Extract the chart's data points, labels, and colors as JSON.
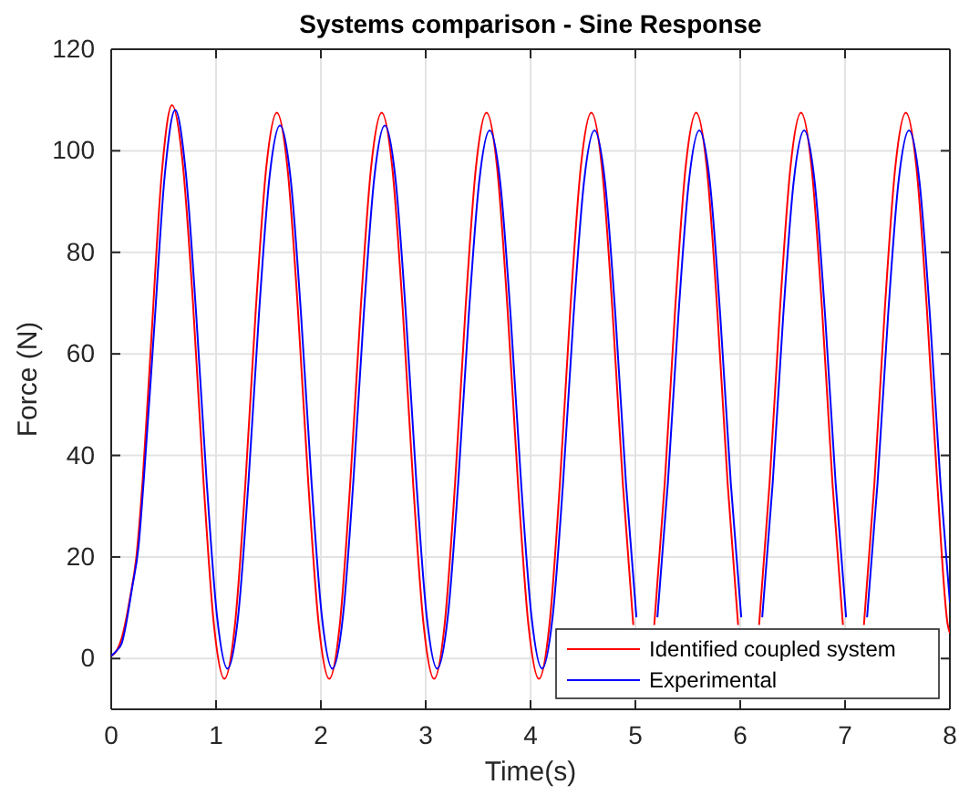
{
  "chart_data": {
    "type": "line",
    "title": "Systems comparison - Sine Response",
    "xlabel": "Time(s)",
    "ylabel": "Force (N)",
    "xlim": [
      0,
      8
    ],
    "xticks": [
      0,
      1,
      2,
      3,
      4,
      5,
      6,
      7,
      8
    ],
    "ylim": [
      -10,
      120
    ],
    "yticks": [
      0,
      20,
      40,
      60,
      80,
      100,
      120
    ],
    "grid": true,
    "legend": "bottom right",
    "line_style": "solid",
    "marker": "none",
    "series": [
      {
        "name": "Identified coupled system",
        "color": "#ff0000",
        "x": [
          0,
          0.05,
          0.1,
          0.18,
          0.24,
          0.3,
          0.38,
          0.48,
          0.58,
          0.68,
          0.78,
          0.88,
          0.98,
          1.08,
          1.18,
          1.28,
          1.38,
          1.48,
          1.58,
          1.68,
          1.78,
          1.88,
          1.98,
          2.08,
          2.18,
          2.28,
          2.38,
          2.48,
          2.58,
          2.68,
          2.78,
          2.88,
          2.98,
          3.08,
          3.18,
          3.28,
          3.38,
          3.48,
          3.58,
          3.68,
          3.78,
          3.88,
          3.98,
          4.08,
          4.18,
          4.28,
          4.38,
          4.48,
          4.58,
          4.68,
          4.78,
          4.88,
          4.98,
          5.08,
          5.18,
          5.28,
          5.38,
          5.48,
          5.58,
          5.68,
          5.78,
          5.88,
          5.98,
          6.08,
          6.18,
          6.28,
          6.38,
          6.48,
          6.58,
          6.68,
          6.78,
          6.88,
          6.98,
          7.08,
          7.18,
          7.28,
          7.38,
          7.48,
          7.58,
          7.68,
          7.78,
          7.88,
          7.98,
          8
        ],
        "values": [
          0.5,
          1.5,
          4,
          12,
          20,
          35,
          62,
          95,
          109,
          98,
          70,
          35,
          6.6,
          -4,
          6.6,
          34.5,
          69,
          96.9,
          107.5,
          96.9,
          69,
          34.5,
          6.6,
          -4,
          6.6,
          34.5,
          69,
          96.9,
          107.5,
          96.9,
          69,
          34.5,
          6.6,
          -4,
          6.6,
          34.5,
          69,
          96.9,
          107.5,
          96.9,
          69,
          34.5,
          6.6,
          -4,
          6.6,
          34.5,
          69,
          96.9,
          107.5,
          96.9,
          69,
          34.5,
          6.6,
          null,
          6.6,
          34.5,
          69,
          96.9,
          107.5,
          96.9,
          69,
          34.5,
          6.6,
          null,
          6.6,
          34.5,
          69,
          96.9,
          107.5,
          96.9,
          69,
          34.5,
          6.6,
          null,
          6.6,
          34.5,
          69,
          96.9,
          107.5,
          96.9,
          69,
          34.5,
          6.6,
          5
        ]
      },
      {
        "name": "Experimental",
        "color": "#0000ff",
        "x": [
          0,
          0.05,
          0.1,
          0.2,
          0.26,
          0.31,
          0.41,
          0.51,
          0.61,
          0.71,
          0.81,
          0.91,
          1.01,
          1.11,
          1.21,
          1.31,
          1.41,
          1.51,
          1.61,
          1.71,
          1.81,
          1.91,
          2.01,
          2.11,
          2.21,
          2.31,
          2.41,
          2.51,
          2.61,
          2.71,
          2.81,
          2.91,
          3.01,
          3.11,
          3.21,
          3.31,
          3.41,
          3.51,
          3.61,
          3.71,
          3.81,
          3.91,
          4.01,
          4.11,
          4.21,
          4.31,
          4.41,
          4.51,
          4.61,
          4.71,
          4.81,
          4.91,
          5.01,
          5.11,
          5.21,
          5.31,
          5.41,
          5.51,
          5.61,
          5.71,
          5.81,
          5.91,
          6.01,
          6.11,
          6.21,
          6.31,
          6.41,
          6.51,
          6.61,
          6.71,
          6.81,
          6.91,
          7.01,
          7.11,
          7.21,
          7.31,
          7.41,
          7.51,
          7.61,
          7.71,
          7.81,
          7.91,
          8
        ],
        "values": [
          0.5,
          1.5,
          3,
          14,
          22,
          35,
          65,
          95,
          108,
          96,
          68,
          35,
          8.2,
          -2,
          8.2,
          35,
          68,
          94.8,
          105,
          94.8,
          68,
          35,
          8.2,
          -2,
          8.2,
          35,
          68,
          94.8,
          105,
          94.8,
          68,
          35,
          8.2,
          -2,
          8.1,
          34.6,
          67.4,
          93.9,
          104,
          93.9,
          67.4,
          34.6,
          8.1,
          -2,
          8.1,
          34.6,
          67.4,
          93.9,
          104,
          93.9,
          67.4,
          34.6,
          8.1,
          null,
          8.1,
          34.6,
          67.4,
          93.9,
          104,
          93.9,
          67.4,
          34.6,
          8.1,
          null,
          8.1,
          34.6,
          67.4,
          93.9,
          104,
          93.9,
          67.4,
          34.6,
          8.1,
          null,
          8.1,
          34.6,
          67.4,
          93.9,
          104,
          93.9,
          67.4,
          34.6,
          11
        ]
      }
    ]
  }
}
